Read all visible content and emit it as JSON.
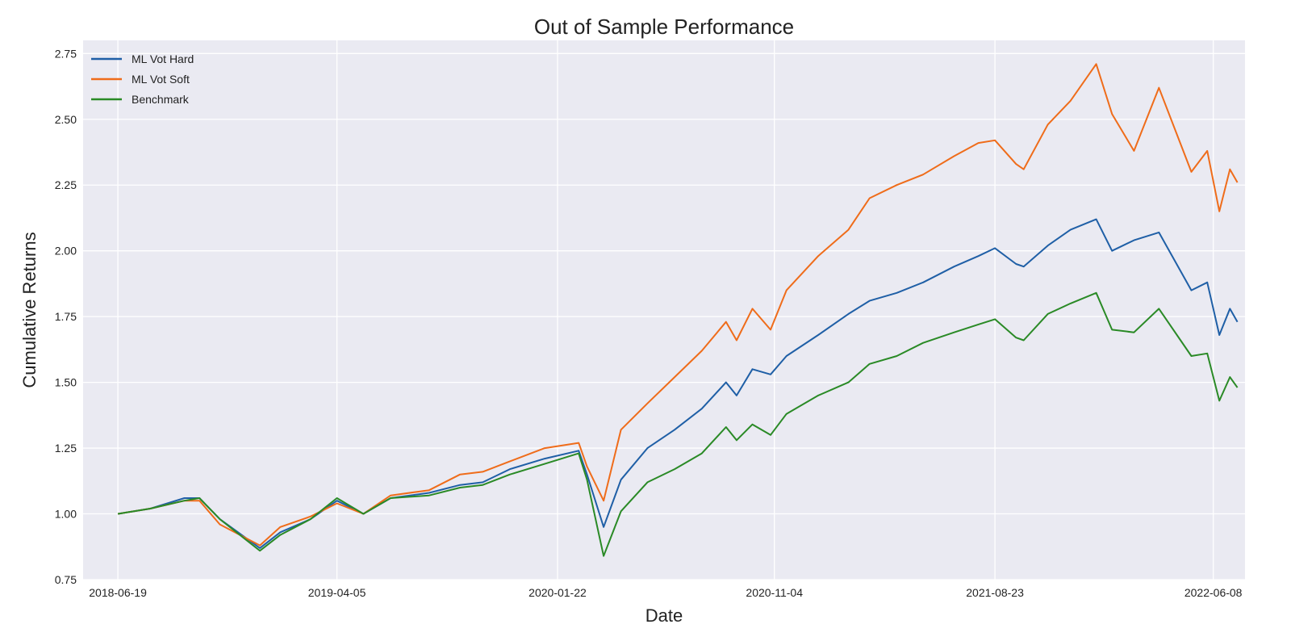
{
  "chart_data": {
    "type": "line",
    "title": "Out of Sample Performance",
    "xlabel": "Date",
    "ylabel": "Cumulative Returns",
    "x_range": [
      "2018-05-04",
      "2022-07-20"
    ],
    "ylim": [
      0.75,
      2.8
    ],
    "x_ticks": [
      "2018-06-19",
      "2019-04-05",
      "2020-01-22",
      "2020-11-04",
      "2021-08-23",
      "2022-06-08"
    ],
    "y_ticks": [
      "0.75",
      "1.00",
      "1.25",
      "1.50",
      "1.75",
      "2.00",
      "2.25",
      "2.50",
      "2.75"
    ],
    "grid": true,
    "legend_position": "top-left",
    "x": [
      "2018-06-19",
      "2018-08-01",
      "2018-09-15",
      "2018-10-05",
      "2018-11-01",
      "2018-12-24",
      "2019-01-20",
      "2019-03-01",
      "2019-04-05",
      "2019-05-10",
      "2019-06-15",
      "2019-08-05",
      "2019-09-15",
      "2019-10-15",
      "2019-11-20",
      "2020-01-05",
      "2020-02-19",
      "2020-03-01",
      "2020-03-23",
      "2020-04-15",
      "2020-05-20",
      "2020-06-25",
      "2020-07-31",
      "2020-09-01",
      "2020-09-15",
      "2020-10-06",
      "2020-10-30",
      "2020-11-20",
      "2021-01-01",
      "2021-02-10",
      "2021-03-10",
      "2021-04-15",
      "2021-05-20",
      "2021-06-30",
      "2021-08-01",
      "2021-08-23",
      "2021-09-20",
      "2021-09-30",
      "2021-11-01",
      "2021-12-01",
      "2022-01-04",
      "2022-01-25",
      "2022-02-23",
      "2022-03-28",
      "2022-05-10",
      "2022-05-31",
      "2022-06-16",
      "2022-06-30",
      "2022-07-10"
    ],
    "series": [
      {
        "name": "ML Vot Hard",
        "color": "#1f5fa6",
        "values": [
          1.0,
          1.02,
          1.06,
          1.06,
          0.98,
          0.87,
          0.93,
          0.98,
          1.05,
          1.0,
          1.06,
          1.08,
          1.11,
          1.12,
          1.17,
          1.21,
          1.24,
          1.15,
          0.95,
          1.13,
          1.25,
          1.32,
          1.4,
          1.5,
          1.45,
          1.55,
          1.53,
          1.6,
          1.68,
          1.76,
          1.81,
          1.84,
          1.88,
          1.94,
          1.98,
          2.01,
          1.95,
          1.94,
          2.02,
          2.08,
          2.12,
          2.0,
          2.04,
          2.07,
          1.85,
          1.88,
          1.68,
          1.78,
          1.73
        ]
      },
      {
        "name": "ML Vot Soft",
        "color": "#ef6c1a",
        "values": [
          1.0,
          1.02,
          1.05,
          1.05,
          0.96,
          0.88,
          0.95,
          0.99,
          1.04,
          1.0,
          1.07,
          1.09,
          1.15,
          1.16,
          1.2,
          1.25,
          1.27,
          1.18,
          1.05,
          1.32,
          1.42,
          1.52,
          1.62,
          1.73,
          1.66,
          1.78,
          1.7,
          1.85,
          1.98,
          2.08,
          2.2,
          2.25,
          2.29,
          2.36,
          2.41,
          2.42,
          2.33,
          2.31,
          2.48,
          2.57,
          2.71,
          2.52,
          2.38,
          2.62,
          2.3,
          2.38,
          2.15,
          2.31,
          2.26
        ]
      },
      {
        "name": "Benchmark",
        "color": "#2a8a26",
        "values": [
          1.0,
          1.02,
          1.05,
          1.06,
          0.98,
          0.86,
          0.92,
          0.98,
          1.06,
          1.0,
          1.06,
          1.07,
          1.1,
          1.11,
          1.15,
          1.19,
          1.23,
          1.13,
          0.84,
          1.01,
          1.12,
          1.17,
          1.23,
          1.33,
          1.28,
          1.34,
          1.3,
          1.38,
          1.45,
          1.5,
          1.57,
          1.6,
          1.65,
          1.69,
          1.72,
          1.74,
          1.67,
          1.66,
          1.76,
          1.8,
          1.84,
          1.7,
          1.69,
          1.78,
          1.6,
          1.61,
          1.43,
          1.52,
          1.48
        ]
      }
    ]
  }
}
